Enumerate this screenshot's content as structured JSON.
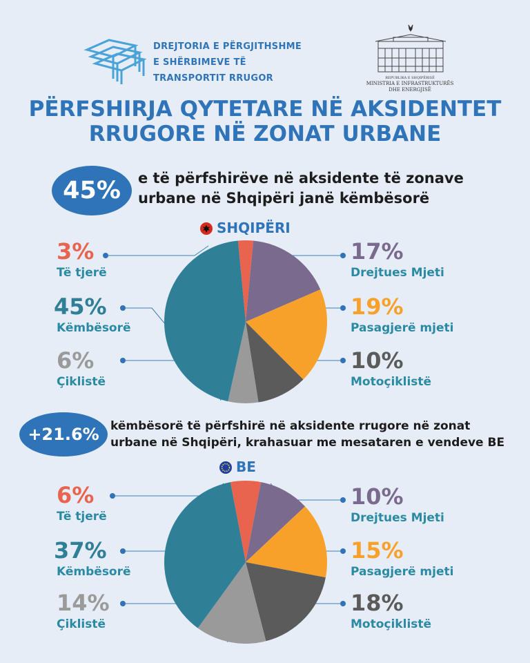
{
  "header": {
    "org_lines": [
      "DREJTORIA E PËRGJITHSHME",
      "E SHËRBIMEVE TË",
      "TRANSPORTIT RRUGOR"
    ],
    "ministry_lines": [
      "REPUBLIKA E SHQIPËRISË",
      "MINISTRIA E INFRASTRUKTURËS",
      "DHE ENERGJISË"
    ]
  },
  "title": "PËRFSHIRJA QYTETARE NË AKSIDENTET RRUGORE NË ZONAT URBANE",
  "highlight1": {
    "value": "45%",
    "text": "e të përfshirëve në aksidente të zonave urbane në Shqipëri janë këmbësorë"
  },
  "highlight2": {
    "value": "+21.6%",
    "text": "këmbësorë të përfshirë në aksidente rrugore në zonat urbane në Shqipëri, krahasuar me mesataren e vendeve BE"
  },
  "colors": {
    "brand_blue": "#2f74b8",
    "te_tjere": "#e9644e",
    "kembesore": "#2f7f97",
    "ciklistë": "#9a9a9a",
    "drejtues": "#7a6a8e",
    "pasagjere": "#f7a12b",
    "motociklistë": "#5b5b5b",
    "label_blue": "#2b8aa3"
  },
  "chart_data": [
    {
      "type": "pie",
      "title": "SHQIPËRI",
      "categories": [
        "Të tjerë",
        "Drejtues Mjeti",
        "Pasagjerë mjeti",
        "Motoçiklistë",
        "Çiklistë",
        "Këmbësorë"
      ],
      "values": [
        3,
        17,
        19,
        10,
        6,
        45
      ],
      "labels": [
        "3%",
        "17%",
        "19%",
        "10%",
        "6%",
        "45%"
      ]
    },
    {
      "type": "pie",
      "title": "BE",
      "categories": [
        "Të tjerë",
        "Drejtues Mjeti",
        "Pasagjerë mjeti",
        "Motoçiklistë",
        "Çiklistë",
        "Këmbësorë"
      ],
      "values": [
        6,
        10,
        15,
        18,
        14,
        37
      ],
      "labels": [
        "6%",
        "10%",
        "15%",
        "18%",
        "14%",
        "37%"
      ]
    }
  ]
}
